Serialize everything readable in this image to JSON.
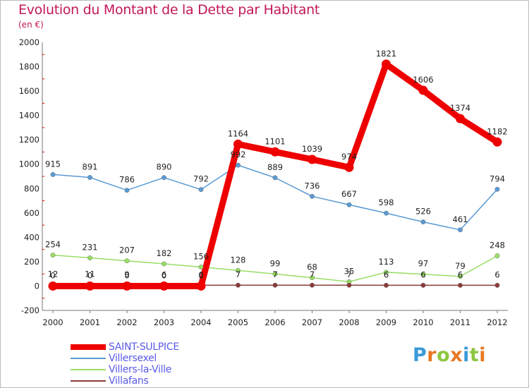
{
  "header": {
    "title": "Evolution du Montant de la Dette par Habitant",
    "subtitle": "(en €)"
  },
  "logo": {
    "text": "Proxiti",
    "colors": [
      "#3a9ad9",
      "#e87722",
      "#8cc63f",
      "#e87722",
      "#3a9ad9",
      "#8cc63f",
      "#e87722"
    ]
  },
  "chart_data": {
    "type": "line",
    "title": "Evolution du Montant de la Dette par Habitant",
    "subtitle": "(en €)",
    "x": [
      "2000",
      "2001",
      "2002",
      "2003",
      "2004",
      "2005",
      "2006",
      "2007",
      "2008",
      "2009",
      "2010",
      "2011",
      "2012"
    ],
    "ylim": [
      -200,
      2000
    ],
    "yticks": [
      -200,
      0,
      200,
      400,
      600,
      800,
      1000,
      1200,
      1400,
      1600,
      1800,
      2000
    ],
    "grid": false,
    "legend": "bottom-left",
    "series": [
      {
        "name": "SAINT-SULPICE",
        "color": "#ee0000",
        "values": [
          0,
          0,
          0,
          0,
          0,
          1164,
          1101,
          1039,
          974,
          1821,
          1606,
          1374,
          1182
        ],
        "labels": [
          "0",
          "0",
          "0",
          "0",
          "0",
          "1164",
          "1101",
          "1039",
          "974",
          "1821",
          "1606",
          "1374",
          "1182"
        ]
      },
      {
        "name": "Villersexel",
        "color": "#5b9bd5",
        "values": [
          915,
          891,
          786,
          890,
          792,
          992,
          889,
          736,
          667,
          598,
          526,
          461,
          794
        ],
        "labels": [
          "915",
          "891",
          "786",
          "890",
          "792",
          "992",
          "889",
          "736",
          "667",
          "598",
          "526",
          "461",
          "794"
        ]
      },
      {
        "name": "Villers-la-Ville",
        "color": "#99dd66",
        "values": [
          254,
          231,
          207,
          182,
          156,
          128,
          99,
          68,
          35,
          113,
          97,
          79,
          248
        ],
        "labels": [
          "254",
          "231",
          "207",
          "182",
          "156",
          "128",
          "99",
          "68",
          "35",
          "113",
          "97",
          "79",
          "248"
        ]
      },
      {
        "name": "Villafans",
        "color": "#8b3a3a",
        "values": [
          12,
          11,
          9,
          6,
          6,
          7,
          7,
          7,
          7,
          6,
          6,
          6,
          6
        ],
        "labels": [
          "12",
          "11",
          "9",
          "6",
          "6",
          "7",
          "7",
          "7",
          "7",
          "6",
          "6",
          "6",
          "6"
        ]
      }
    ]
  }
}
